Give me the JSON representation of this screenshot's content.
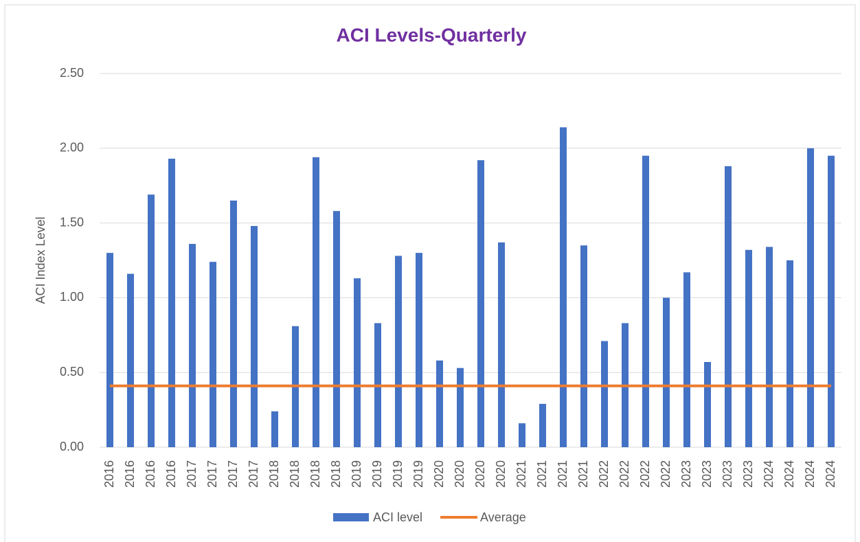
{
  "chart_data": {
    "type": "bar",
    "title": "ACI Levels-Quarterly",
    "y_label": "ACI Index Level",
    "categories": [
      "2016",
      "2016",
      "2016",
      "2016",
      "2017",
      "2017",
      "2017",
      "2017",
      "2018",
      "2018",
      "2018",
      "2018",
      "2019",
      "2019",
      "2019",
      "2019",
      "2020",
      "2020",
      "2020",
      "2020",
      "2021",
      "2021",
      "2021",
      "2021",
      "2022",
      "2022",
      "2022",
      "2022",
      "2023",
      "2023",
      "2023",
      "2023",
      "2024",
      "2024",
      "2024",
      "2024"
    ],
    "series": [
      {
        "name": "ACI level",
        "type": "bar",
        "color": "#4472c4",
        "values": [
          1.3,
          1.16,
          1.69,
          1.93,
          1.36,
          1.24,
          1.65,
          1.48,
          0.24,
          0.81,
          1.94,
          1.58,
          1.13,
          0.83,
          1.28,
          1.3,
          0.58,
          0.53,
          1.92,
          1.37,
          0.16,
          0.29,
          2.14,
          1.35,
          0.71,
          0.83,
          1.95,
          1.0,
          1.17,
          0.57,
          1.88,
          1.32,
          1.34,
          1.25,
          2.0,
          1.95
        ]
      },
      {
        "name": "Average",
        "type": "line",
        "color": "#ed7d31",
        "values": [
          0.41,
          0.41,
          0.41,
          0.41,
          0.41,
          0.41,
          0.41,
          0.41,
          0.41,
          0.41,
          0.41,
          0.41,
          0.41,
          0.41,
          0.41,
          0.41,
          0.41,
          0.41,
          0.41,
          0.41,
          0.41,
          0.41,
          0.41,
          0.41,
          0.41,
          0.41,
          0.41,
          0.41,
          0.41,
          0.41,
          0.41,
          0.41,
          0.41,
          0.41,
          0.41,
          0.41
        ]
      }
    ],
    "ylim": [
      0,
      2.5
    ],
    "yticks": [
      {
        "value": 0,
        "label": "0.00"
      },
      {
        "value": 0.5,
        "label": "0.50"
      },
      {
        "value": 1,
        "label": "1.00"
      },
      {
        "value": 1.5,
        "label": "1.50"
      },
      {
        "value": 2,
        "label": "2.00"
      },
      {
        "value": 2.5,
        "label": "2.50"
      }
    ],
    "grid": true,
    "legend": "bottom"
  }
}
